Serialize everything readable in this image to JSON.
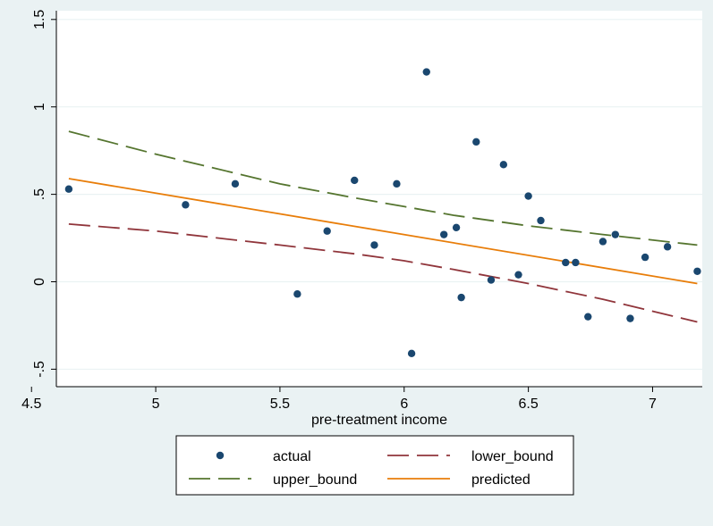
{
  "chart_data": {
    "type": "scatter",
    "title": "",
    "xlabel": "pre-treatment income",
    "ylabel": "",
    "xlim": [
      4.6,
      7.2
    ],
    "ylim": [
      -0.6,
      1.55
    ],
    "x_ticks": [
      {
        "value": 4.5,
        "label": "4.5"
      },
      {
        "value": 5,
        "label": "5"
      },
      {
        "value": 5.5,
        "label": "5.5"
      },
      {
        "value": 6,
        "label": "6"
      },
      {
        "value": 6.5,
        "label": "6.5"
      },
      {
        "value": 7,
        "label": "7"
      }
    ],
    "y_ticks": [
      {
        "value": -0.5,
        "label": "-.5"
      },
      {
        "value": 0,
        "label": "0"
      },
      {
        "value": 0.5,
        "label": ".5"
      },
      {
        "value": 1,
        "label": "1"
      },
      {
        "value": 1.5,
        "label": "1.5"
      }
    ],
    "grid": "horizontal",
    "legend_position": "bottom",
    "series": [
      {
        "name": "actual",
        "kind": "scatter",
        "color": "#1a476f",
        "points": [
          [
            4.65,
            0.53
          ],
          [
            5.12,
            0.44
          ],
          [
            5.32,
            0.56
          ],
          [
            5.57,
            -0.07
          ],
          [
            5.69,
            0.29
          ],
          [
            5.8,
            0.58
          ],
          [
            5.88,
            0.21
          ],
          [
            5.97,
            0.56
          ],
          [
            6.03,
            -0.41
          ],
          [
            6.09,
            1.2
          ],
          [
            6.16,
            0.27
          ],
          [
            6.21,
            0.31
          ],
          [
            6.23,
            -0.09
          ],
          [
            6.29,
            0.8
          ],
          [
            6.35,
            0.01
          ],
          [
            6.4,
            0.67
          ],
          [
            6.46,
            0.04
          ],
          [
            6.5,
            0.49
          ],
          [
            6.55,
            0.35
          ],
          [
            6.65,
            0.11
          ],
          [
            6.69,
            0.11
          ],
          [
            6.74,
            -0.2
          ],
          [
            6.8,
            0.23
          ],
          [
            6.85,
            0.27
          ],
          [
            6.91,
            -0.21
          ],
          [
            6.97,
            0.14
          ],
          [
            7.06,
            0.2
          ],
          [
            7.18,
            0.06
          ]
        ]
      },
      {
        "name": "lower_bound",
        "kind": "line",
        "dash": "long",
        "color": "#90353b",
        "points": [
          [
            4.65,
            0.33
          ],
          [
            5.0,
            0.29
          ],
          [
            5.5,
            0.21
          ],
          [
            5.8,
            0.16
          ],
          [
            6.0,
            0.12
          ],
          [
            6.2,
            0.07
          ],
          [
            6.5,
            -0.01
          ],
          [
            6.8,
            -0.1
          ],
          [
            7.18,
            -0.23
          ]
        ]
      },
      {
        "name": "upper_bound",
        "kind": "line",
        "dash": "long",
        "color": "#55752f",
        "points": [
          [
            4.65,
            0.86
          ],
          [
            5.0,
            0.73
          ],
          [
            5.5,
            0.56
          ],
          [
            5.8,
            0.48
          ],
          [
            6.0,
            0.43
          ],
          [
            6.2,
            0.38
          ],
          [
            6.5,
            0.32
          ],
          [
            6.8,
            0.27
          ],
          [
            7.18,
            0.21
          ]
        ]
      },
      {
        "name": "predicted",
        "kind": "line",
        "dash": "solid",
        "color": "#e87d09",
        "points": [
          [
            4.65,
            0.59
          ],
          [
            7.18,
            -0.01
          ]
        ]
      }
    ],
    "legend_entries": [
      {
        "series": "actual",
        "label": "actual"
      },
      {
        "series": "lower_bound",
        "label": "lower_bound"
      },
      {
        "series": "upper_bound",
        "label": "upper_bound"
      },
      {
        "series": "predicted",
        "label": "predicted"
      }
    ]
  },
  "style": {
    "outer_background": "#eaf2f3",
    "plot_background": "#ffffff",
    "grid_color": "#eaf2f3"
  }
}
